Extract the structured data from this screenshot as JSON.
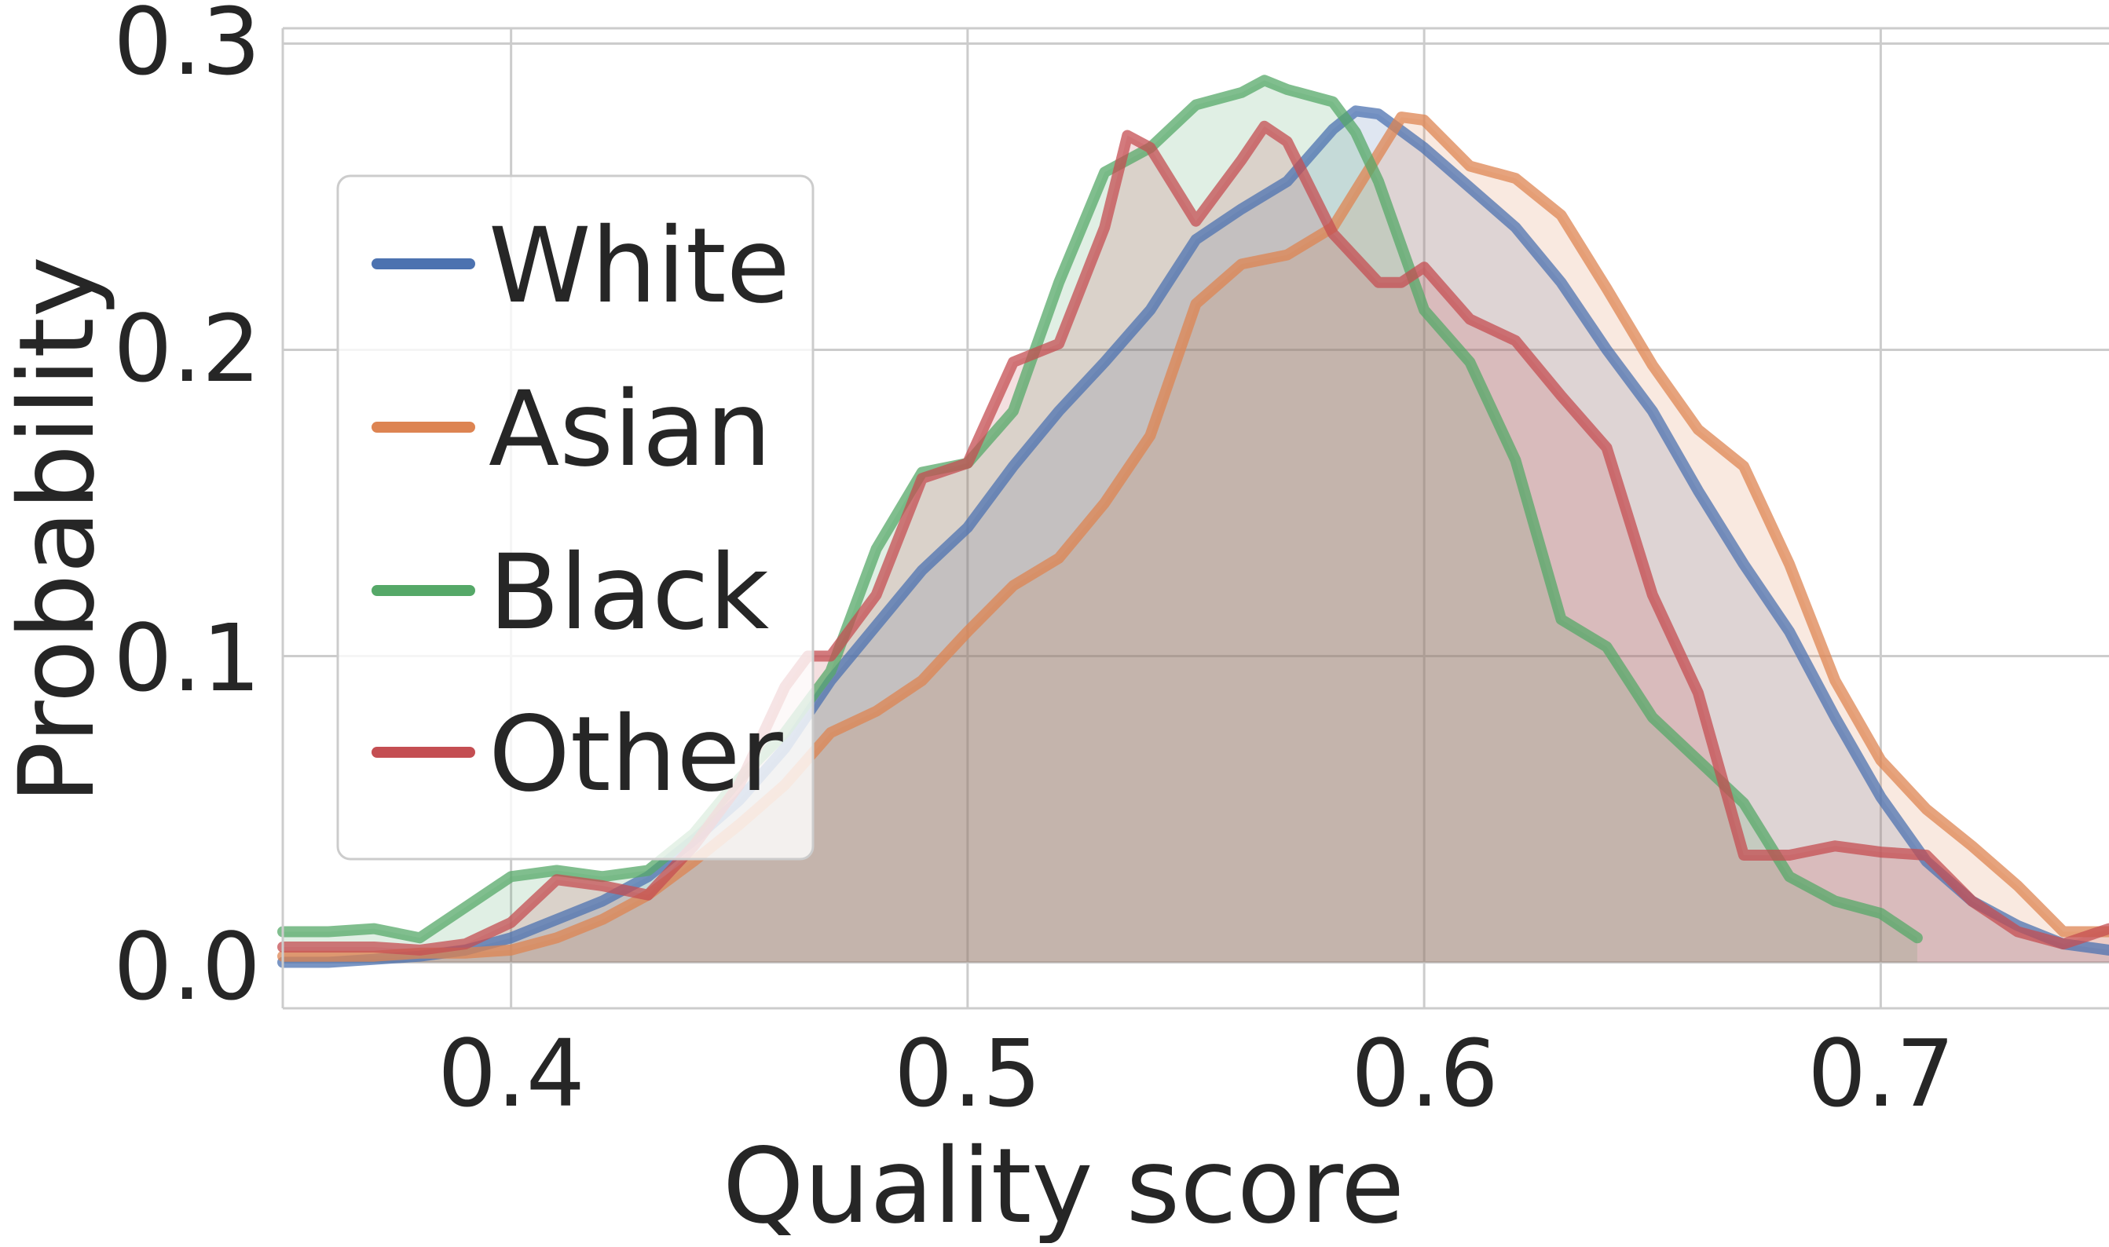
{
  "chart_data": {
    "type": "area",
    "title": "",
    "xlabel": "Quality score",
    "ylabel": "Probability",
    "xlim": [
      0.35,
      0.75
    ],
    "ylim": [
      -0.015,
      0.305
    ],
    "xticks": [
      "0.4",
      "0.5",
      "0.6",
      "0.7"
    ],
    "yticks": [
      "0.0",
      "0.1",
      "0.2",
      "0.3"
    ],
    "grid": true,
    "legend_position": "center-left",
    "series": [
      {
        "name": "White",
        "color": "#4c72b0",
        "x": [
          0.35,
          0.36,
          0.37,
          0.38,
          0.39,
          0.4,
          0.41,
          0.42,
          0.43,
          0.44,
          0.45,
          0.46,
          0.47,
          0.48,
          0.49,
          0.5,
          0.51,
          0.52,
          0.53,
          0.54,
          0.55,
          0.56,
          0.57,
          0.58,
          0.585,
          0.59,
          0.6,
          0.61,
          0.62,
          0.63,
          0.64,
          0.65,
          0.66,
          0.67,
          0.68,
          0.69,
          0.7,
          0.71,
          0.72,
          0.73,
          0.74,
          0.75
        ],
        "y": [
          0.0,
          0.0,
          0.001,
          0.002,
          0.004,
          0.008,
          0.014,
          0.02,
          0.028,
          0.04,
          0.053,
          0.07,
          0.092,
          0.11,
          0.128,
          0.142,
          0.162,
          0.18,
          0.196,
          0.213,
          0.236,
          0.246,
          0.255,
          0.272,
          0.278,
          0.277,
          0.266,
          0.253,
          0.24,
          0.222,
          0.2,
          0.18,
          0.154,
          0.13,
          0.108,
          0.08,
          0.054,
          0.033,
          0.02,
          0.012,
          0.006,
          0.004
        ]
      },
      {
        "name": "Asian",
        "color": "#dd8452",
        "x": [
          0.35,
          0.36,
          0.37,
          0.38,
          0.39,
          0.4,
          0.41,
          0.42,
          0.43,
          0.44,
          0.45,
          0.46,
          0.47,
          0.48,
          0.49,
          0.5,
          0.51,
          0.52,
          0.53,
          0.54,
          0.55,
          0.56,
          0.57,
          0.58,
          0.59,
          0.595,
          0.6,
          0.61,
          0.62,
          0.63,
          0.64,
          0.65,
          0.66,
          0.67,
          0.68,
          0.69,
          0.7,
          0.71,
          0.72,
          0.73,
          0.74,
          0.75
        ],
        "y": [
          0.002,
          0.002,
          0.002,
          0.003,
          0.003,
          0.004,
          0.008,
          0.014,
          0.022,
          0.033,
          0.045,
          0.058,
          0.075,
          0.082,
          0.092,
          0.108,
          0.123,
          0.132,
          0.15,
          0.172,
          0.215,
          0.228,
          0.231,
          0.24,
          0.264,
          0.276,
          0.275,
          0.26,
          0.256,
          0.244,
          0.22,
          0.195,
          0.174,
          0.162,
          0.13,
          0.092,
          0.066,
          0.05,
          0.038,
          0.025,
          0.01,
          0.01
        ]
      },
      {
        "name": "Black",
        "color": "#55a868",
        "x": [
          0.35,
          0.36,
          0.37,
          0.38,
          0.39,
          0.4,
          0.41,
          0.42,
          0.43,
          0.44,
          0.45,
          0.46,
          0.47,
          0.48,
          0.49,
          0.5,
          0.51,
          0.52,
          0.53,
          0.54,
          0.55,
          0.56,
          0.565,
          0.57,
          0.58,
          0.585,
          0.59,
          0.6,
          0.61,
          0.62,
          0.63,
          0.64,
          0.65,
          0.66,
          0.67,
          0.68,
          0.69,
          0.7,
          0.708
        ],
        "y": [
          0.01,
          0.01,
          0.011,
          0.008,
          0.018,
          0.028,
          0.03,
          0.028,
          0.03,
          0.042,
          0.06,
          0.075,
          0.095,
          0.135,
          0.16,
          0.163,
          0.18,
          0.222,
          0.258,
          0.266,
          0.28,
          0.284,
          0.288,
          0.285,
          0.281,
          0.271,
          0.255,
          0.213,
          0.196,
          0.164,
          0.112,
          0.103,
          0.08,
          0.066,
          0.052,
          0.028,
          0.02,
          0.016,
          0.008
        ]
      },
      {
        "name": "Other",
        "color": "#c44e52",
        "x": [
          0.35,
          0.36,
          0.37,
          0.38,
          0.39,
          0.4,
          0.41,
          0.42,
          0.43,
          0.44,
          0.45,
          0.46,
          0.465,
          0.47,
          0.48,
          0.49,
          0.5,
          0.51,
          0.52,
          0.53,
          0.535,
          0.54,
          0.55,
          0.56,
          0.565,
          0.57,
          0.58,
          0.59,
          0.595,
          0.6,
          0.61,
          0.62,
          0.63,
          0.64,
          0.65,
          0.66,
          0.67,
          0.68,
          0.69,
          0.7,
          0.71,
          0.72,
          0.73,
          0.74,
          0.75
        ],
        "y": [
          0.005,
          0.005,
          0.005,
          0.004,
          0.006,
          0.013,
          0.027,
          0.025,
          0.022,
          0.038,
          0.058,
          0.09,
          0.1,
          0.1,
          0.12,
          0.158,
          0.163,
          0.196,
          0.202,
          0.24,
          0.27,
          0.266,
          0.242,
          0.262,
          0.273,
          0.268,
          0.238,
          0.222,
          0.222,
          0.227,
          0.21,
          0.203,
          0.185,
          0.168,
          0.12,
          0.088,
          0.035,
          0.035,
          0.038,
          0.036,
          0.035,
          0.02,
          0.01,
          0.006,
          0.011
        ]
      }
    ]
  }
}
